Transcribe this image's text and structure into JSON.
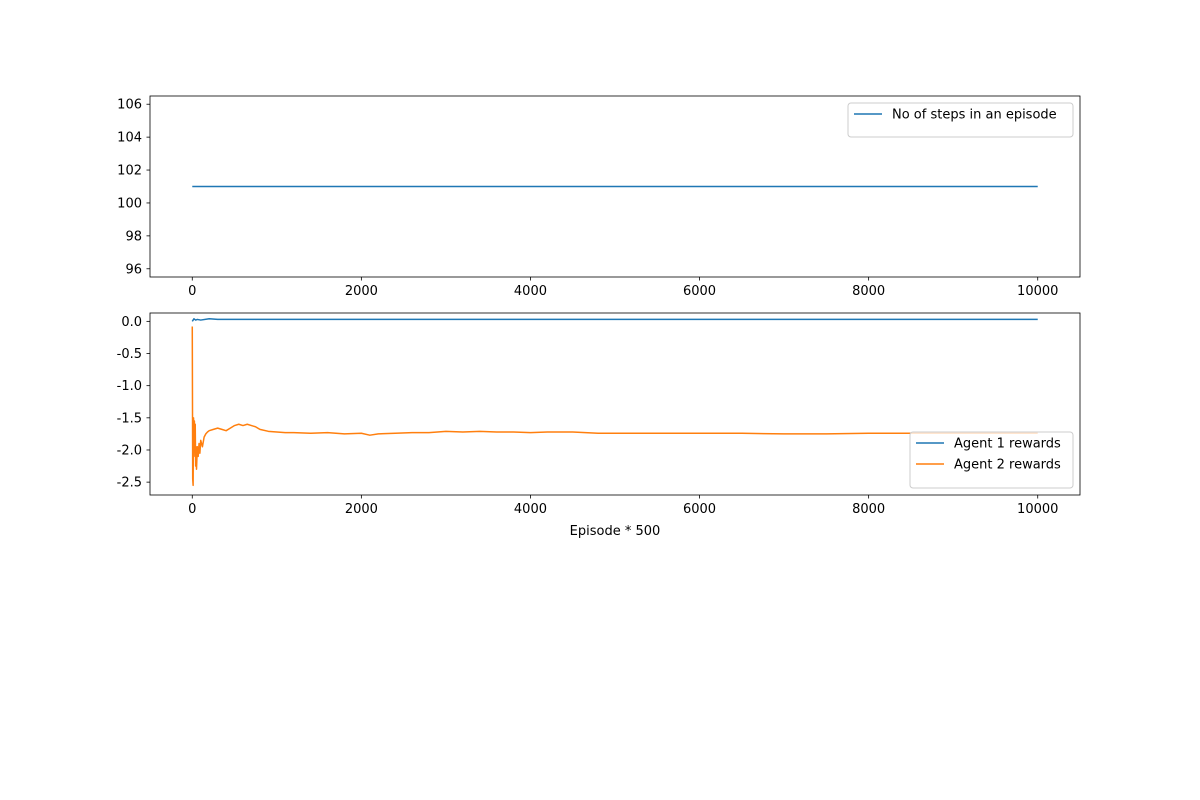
{
  "chart_data": [
    {
      "type": "line",
      "title": "",
      "xlabel": "",
      "ylabel": "",
      "xlim": [
        -500,
        10500
      ],
      "ylim": [
        95.5,
        106.5
      ],
      "xticks": [
        0,
        2000,
        4000,
        6000,
        8000,
        10000
      ],
      "yticks": [
        96,
        98,
        100,
        102,
        104,
        106
      ],
      "grid": false,
      "legend_position": "upper right",
      "series": [
        {
          "name": "No of steps in an episode",
          "color": "#1f77b4",
          "x": [
            0,
            10000
          ],
          "y": [
            101,
            101
          ]
        }
      ]
    },
    {
      "type": "line",
      "title": "",
      "xlabel": "Episode * 500",
      "ylabel": "",
      "xlim": [
        -500,
        10500
      ],
      "ylim": [
        -2.7,
        0.13
      ],
      "xticks": [
        0,
        2000,
        4000,
        6000,
        8000,
        10000
      ],
      "yticks": [
        0.0,
        -0.5,
        -1.0,
        -1.5,
        -2.0,
        -2.5
      ],
      "grid": false,
      "legend_position": "lower right",
      "series": [
        {
          "name": "Agent 1 rewards",
          "color": "#1f77b4",
          "x": [
            0,
            10,
            20,
            40,
            60,
            100,
            200,
            300,
            500,
            1000,
            2000,
            4000,
            6000,
            8000,
            10000
          ],
          "y": [
            0.0,
            0.02,
            0.04,
            0.02,
            0.03,
            0.02,
            0.04,
            0.03,
            0.03,
            0.03,
            0.03,
            0.03,
            0.03,
            0.03,
            0.03
          ]
        },
        {
          "name": "Agent 2 rewards",
          "color": "#ff7f0e",
          "x": [
            0,
            5,
            10,
            15,
            20,
            25,
            30,
            35,
            40,
            45,
            50,
            60,
            70,
            80,
            90,
            100,
            120,
            140,
            160,
            180,
            200,
            250,
            300,
            350,
            400,
            450,
            500,
            550,
            600,
            650,
            700,
            750,
            800,
            900,
            1000,
            1100,
            1200,
            1400,
            1600,
            1800,
            2000,
            2100,
            2200,
            2400,
            2600,
            2800,
            3000,
            3200,
            3400,
            3600,
            3800,
            4000,
            4200,
            4500,
            4800,
            5000,
            5500,
            6000,
            6500,
            7000,
            7500,
            8000,
            8500,
            9000,
            9500,
            10000
          ],
          "y": [
            -0.08,
            -2.45,
            -2.55,
            -1.5,
            -2.1,
            -1.55,
            -1.9,
            -1.6,
            -2.25,
            -1.95,
            -2.3,
            -1.95,
            -2.1,
            -1.9,
            -2.05,
            -1.85,
            -1.95,
            -1.8,
            -1.75,
            -1.72,
            -1.7,
            -1.68,
            -1.66,
            -1.68,
            -1.7,
            -1.66,
            -1.62,
            -1.6,
            -1.62,
            -1.6,
            -1.62,
            -1.64,
            -1.68,
            -1.71,
            -1.72,
            -1.73,
            -1.73,
            -1.74,
            -1.73,
            -1.75,
            -1.74,
            -1.77,
            -1.75,
            -1.74,
            -1.73,
            -1.73,
            -1.71,
            -1.72,
            -1.71,
            -1.72,
            -1.72,
            -1.73,
            -1.72,
            -1.72,
            -1.74,
            -1.74,
            -1.74,
            -1.74,
            -1.74,
            -1.75,
            -1.75,
            -1.74,
            -1.74,
            -1.74,
            -1.74,
            -1.74
          ]
        }
      ]
    }
  ]
}
